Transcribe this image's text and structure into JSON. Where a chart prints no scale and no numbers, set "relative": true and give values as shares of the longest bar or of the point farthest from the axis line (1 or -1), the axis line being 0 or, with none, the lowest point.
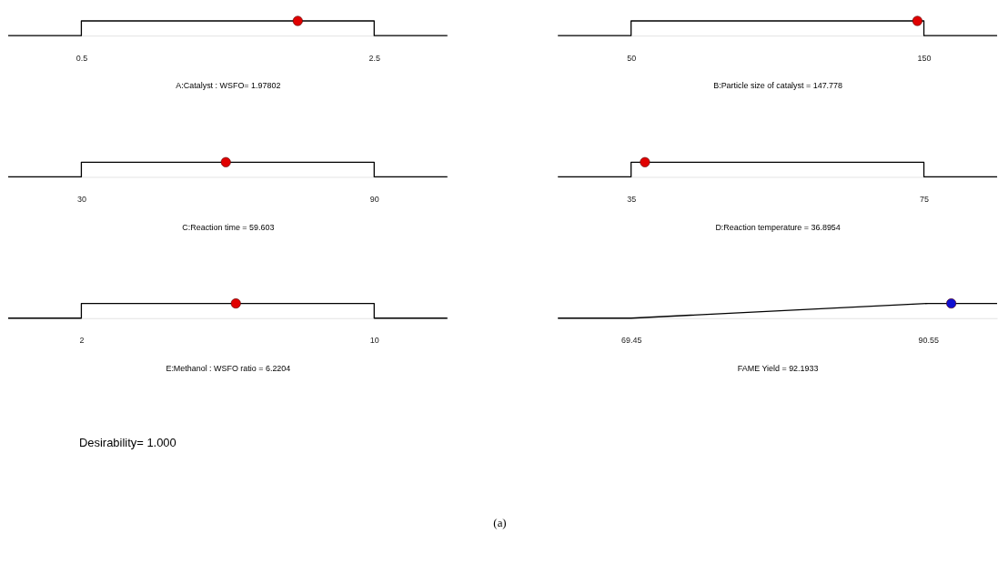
{
  "chart_data": [
    {
      "type": "line",
      "xlabel": "A:Catalyst : WSFO= 1.97802",
      "relative": true,
      "xlim": [
        0,
        3
      ],
      "xticks": [
        0.5,
        2.5
      ],
      "grid": false,
      "legend": false,
      "series": [
        {
          "type": "line",
          "color": "#000000",
          "x": [
            0,
            0.5,
            0.5,
            2.5,
            2.5,
            3
          ],
          "values": [
            0,
            0,
            1,
            1,
            0,
            0
          ]
        },
        {
          "type": "scatter",
          "marker": "circle",
          "color": "#e00000",
          "x": [
            1.97802
          ],
          "values": [
            1
          ]
        }
      ]
    },
    {
      "type": "line",
      "xlabel": "B:Particle size of catalyst = 147.778",
      "relative": true,
      "xlim": [
        25,
        175
      ],
      "xticks": [
        50,
        150
      ],
      "grid": false,
      "legend": false,
      "series": [
        {
          "type": "line",
          "color": "#000000",
          "x": [
            25,
            50,
            50,
            150,
            150,
            175
          ],
          "values": [
            0,
            0,
            1,
            1,
            0,
            0
          ]
        },
        {
          "type": "scatter",
          "marker": "circle",
          "color": "#e00000",
          "x": [
            147.778
          ],
          "values": [
            1
          ]
        }
      ]
    },
    {
      "type": "line",
      "xlabel": "C:Reaction time = 59.603",
      "relative": true,
      "xlim": [
        15,
        105
      ],
      "xticks": [
        30,
        90
      ],
      "grid": false,
      "legend": false,
      "series": [
        {
          "type": "line",
          "color": "#000000",
          "x": [
            15,
            30,
            30,
            90,
            90,
            105
          ],
          "values": [
            0,
            0,
            1,
            1,
            0,
            0
          ]
        },
        {
          "type": "scatter",
          "marker": "circle",
          "color": "#e00000",
          "x": [
            59.603
          ],
          "values": [
            1
          ]
        }
      ]
    },
    {
      "type": "line",
      "xlabel": "D:Reaction temperature = 36.8954",
      "relative": true,
      "xlim": [
        25,
        85
      ],
      "xticks": [
        35,
        75
      ],
      "grid": false,
      "legend": false,
      "series": [
        {
          "type": "line",
          "color": "#000000",
          "x": [
            25,
            35,
            35,
            75,
            75,
            85
          ],
          "values": [
            0,
            0,
            1,
            1,
            0,
            0
          ]
        },
        {
          "type": "scatter",
          "marker": "circle",
          "color": "#e00000",
          "x": [
            36.8954
          ],
          "values": [
            1
          ]
        }
      ]
    },
    {
      "type": "line",
      "xlabel": "E:Methanol : WSFO ratio = 6.2204",
      "relative": true,
      "xlim": [
        0,
        12
      ],
      "xticks": [
        2,
        10
      ],
      "grid": false,
      "legend": false,
      "annotations": [
        "Desirability= 1.000",
        "(a)"
      ],
      "series": [
        {
          "type": "line",
          "color": "#000000",
          "x": [
            0,
            2,
            2,
            10,
            10,
            12
          ],
          "values": [
            0,
            0,
            1,
            1,
            0,
            0
          ]
        },
        {
          "type": "scatter",
          "marker": "circle",
          "color": "#e00000",
          "x": [
            6.2204
          ],
          "values": [
            1
          ]
        }
      ]
    },
    {
      "type": "line",
      "xlabel": "FAME Yield = 92.1933",
      "relative": true,
      "xlim": [
        64.25,
        95.45
      ],
      "xticks": [
        69.45,
        90.55
      ],
      "grid": false,
      "legend": false,
      "series": [
        {
          "type": "line",
          "color": "#000000",
          "x": [
            64.25,
            69.45,
            90.55,
            95.45
          ],
          "values": [
            0,
            0,
            1,
            1
          ]
        },
        {
          "type": "scatter",
          "marker": "circle",
          "color": "#1010d0",
          "x": [
            92.1933
          ],
          "values": [
            1
          ]
        }
      ]
    }
  ]
}
